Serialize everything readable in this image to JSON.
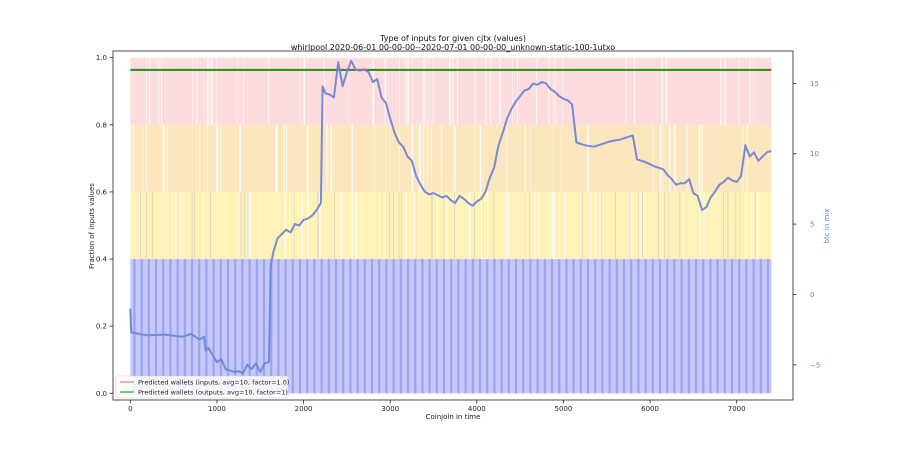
{
  "chart_data": {
    "type": "area",
    "title": "Type of inputs for given cjtx (values)",
    "subtitle": "whirlpool 2020-06-01 00-00-00--2020-07-01 00-00-00_unknown-static-100-1utxo",
    "xlabel": "Coinjoin in time",
    "ylabel": "Fraction of inputs values",
    "y2label": "btc in mix",
    "xlim": [
      -200,
      7650
    ],
    "ylim": [
      -0.02,
      1.02
    ],
    "y2lim": [
      -7.5,
      17.3
    ],
    "x_ticks": [
      0,
      1000,
      2000,
      3000,
      4000,
      5000,
      6000,
      7000
    ],
    "y_ticks": [
      0.0,
      0.2,
      0.4,
      0.6,
      0.8,
      1.0
    ],
    "y2_ticks": [
      -5,
      0,
      5,
      10,
      15
    ],
    "grid": false,
    "legend_position": "lower-left",
    "colors": {
      "band_low": "#c5c8fb",
      "band_low_stripe": "#8f96ee",
      "band_mid": "#fdf3b8",
      "band_high": "#fce6bd",
      "band_top": "#fcdcdc",
      "inputs_line": "#f08080",
      "outputs_line": "#2ca02c",
      "top_line": "#a0522d",
      "btc_line": "#6f86d6"
    },
    "bands": [
      {
        "name": "",
        "y0": 0.0,
        "y1": 0.4
      },
      {
        "name": "",
        "y0": 0.4,
        "y1": 0.6
      },
      {
        "name": "",
        "y0": 0.6,
        "y1": 0.8
      },
      {
        "name": "",
        "y0": 0.8,
        "y1": 1.0
      }
    ],
    "x_range": [
      0,
      7400
    ],
    "series": [
      {
        "name": "Predicted wallets (inputs, avg=10, factor=1.0)",
        "axis": "left",
        "points": [
          [
            0,
            0.965
          ],
          [
            7400,
            0.965
          ]
        ]
      },
      {
        "name": "Predicted wallets (outputs, avg=10, factor=1)",
        "axis": "left",
        "points": [
          [
            0,
            0.962
          ],
          [
            7400,
            0.962
          ]
        ]
      },
      {
        "name": "",
        "axis": "right",
        "points": [
          [
            0,
            -1.0
          ],
          [
            10,
            -2.7
          ],
          [
            200,
            -2.9
          ],
          [
            400,
            -2.85
          ],
          [
            600,
            -3.0
          ],
          [
            700,
            -2.8
          ],
          [
            800,
            -3.2
          ],
          [
            850,
            -3.0
          ],
          [
            870,
            -4.0
          ],
          [
            900,
            -3.8
          ],
          [
            950,
            -4.3
          ],
          [
            1000,
            -4.8
          ],
          [
            1050,
            -4.6
          ],
          [
            1100,
            -5.3
          ],
          [
            1150,
            -5.4
          ],
          [
            1200,
            -5.5
          ],
          [
            1250,
            -5.45
          ],
          [
            1300,
            -5.6
          ],
          [
            1350,
            -5.0
          ],
          [
            1400,
            -5.3
          ],
          [
            1450,
            -4.9
          ],
          [
            1500,
            -5.5
          ],
          [
            1550,
            -4.9
          ],
          [
            1600,
            -4.8
          ],
          [
            1620,
            2.0
          ],
          [
            1650,
            3.0
          ],
          [
            1700,
            4.0
          ],
          [
            1750,
            4.3
          ],
          [
            1800,
            4.6
          ],
          [
            1850,
            4.4
          ],
          [
            1900,
            5.0
          ],
          [
            1950,
            4.9
          ],
          [
            2000,
            5.3
          ],
          [
            2050,
            5.4
          ],
          [
            2100,
            5.6
          ],
          [
            2150,
            6.0
          ],
          [
            2200,
            6.5
          ],
          [
            2220,
            14.8
          ],
          [
            2250,
            14.3
          ],
          [
            2300,
            14.2
          ],
          [
            2350,
            14.0
          ],
          [
            2400,
            16.5
          ],
          [
            2450,
            14.8
          ],
          [
            2500,
            15.8
          ],
          [
            2550,
            16.6
          ],
          [
            2600,
            16.0
          ],
          [
            2650,
            15.9
          ],
          [
            2700,
            16.0
          ],
          [
            2750,
            15.8
          ],
          [
            2800,
            15.1
          ],
          [
            2850,
            15.3
          ],
          [
            2900,
            14.0
          ],
          [
            2950,
            13.6
          ],
          [
            3000,
            12.5
          ],
          [
            3050,
            11.5
          ],
          [
            3100,
            10.8
          ],
          [
            3150,
            10.5
          ],
          [
            3200,
            9.8
          ],
          [
            3250,
            9.5
          ],
          [
            3300,
            8.4
          ],
          [
            3350,
            7.8
          ],
          [
            3400,
            7.3
          ],
          [
            3450,
            7.1
          ],
          [
            3500,
            7.2
          ],
          [
            3600,
            6.9
          ],
          [
            3650,
            7.0
          ],
          [
            3700,
            6.7
          ],
          [
            3750,
            6.5
          ],
          [
            3800,
            7.0
          ],
          [
            3850,
            6.8
          ],
          [
            3900,
            6.5
          ],
          [
            3950,
            6.3
          ],
          [
            4000,
            6.6
          ],
          [
            4050,
            6.8
          ],
          [
            4100,
            7.3
          ],
          [
            4150,
            8.3
          ],
          [
            4200,
            9.0
          ],
          [
            4250,
            10.6
          ],
          [
            4300,
            11.5
          ],
          [
            4350,
            12.5
          ],
          [
            4400,
            13.2
          ],
          [
            4450,
            13.7
          ],
          [
            4500,
            14.1
          ],
          [
            4550,
            14.5
          ],
          [
            4600,
            14.6
          ],
          [
            4650,
            15.0
          ],
          [
            4700,
            14.9
          ],
          [
            4750,
            15.1
          ],
          [
            4800,
            15.0
          ],
          [
            4850,
            14.6
          ],
          [
            4900,
            14.4
          ],
          [
            4950,
            14.1
          ],
          [
            5000,
            13.9
          ],
          [
            5050,
            13.8
          ],
          [
            5100,
            13.5
          ],
          [
            5150,
            10.8
          ],
          [
            5250,
            10.6
          ],
          [
            5350,
            10.5
          ],
          [
            5450,
            10.7
          ],
          [
            5550,
            10.9
          ],
          [
            5650,
            11.0
          ],
          [
            5750,
            11.2
          ],
          [
            5800,
            11.3
          ],
          [
            5850,
            9.6
          ],
          [
            5950,
            9.4
          ],
          [
            6050,
            9.1
          ],
          [
            6150,
            8.9
          ],
          [
            6200,
            8.5
          ],
          [
            6250,
            8.2
          ],
          [
            6300,
            7.8
          ],
          [
            6350,
            7.9
          ],
          [
            6400,
            7.9
          ],
          [
            6450,
            8.2
          ],
          [
            6500,
            7.2
          ],
          [
            6550,
            7.0
          ],
          [
            6600,
            6.0
          ],
          [
            6650,
            6.2
          ],
          [
            6700,
            6.9
          ],
          [
            6750,
            7.3
          ],
          [
            6800,
            7.8
          ],
          [
            6850,
            8.0
          ],
          [
            6900,
            8.3
          ],
          [
            6950,
            8.1
          ],
          [
            7000,
            8.0
          ],
          [
            7050,
            8.4
          ],
          [
            7100,
            10.6
          ],
          [
            7150,
            9.8
          ],
          [
            7200,
            10.1
          ],
          [
            7250,
            9.5
          ],
          [
            7300,
            9.8
          ],
          [
            7350,
            10.1
          ],
          [
            7400,
            10.2
          ]
        ]
      }
    ]
  }
}
